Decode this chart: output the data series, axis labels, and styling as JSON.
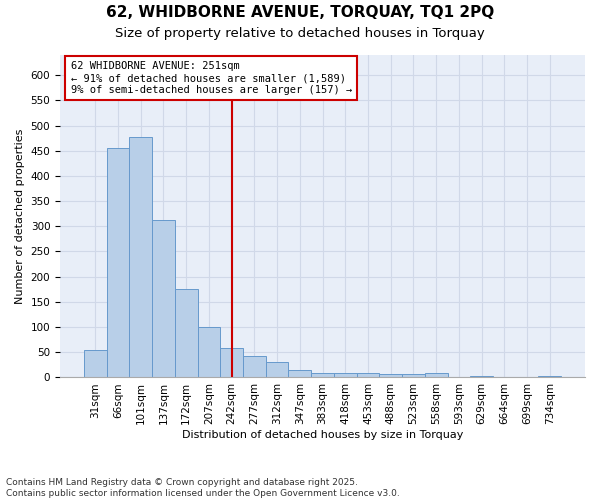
{
  "title": "62, WHIDBORNE AVENUE, TORQUAY, TQ1 2PQ",
  "subtitle": "Size of property relative to detached houses in Torquay",
  "xlabel": "Distribution of detached houses by size in Torquay",
  "ylabel": "Number of detached properties",
  "footer_line1": "Contains HM Land Registry data © Crown copyright and database right 2025.",
  "footer_line2": "Contains public sector information licensed under the Open Government Licence v3.0.",
  "annotation_title": "62 WHIDBORNE AVENUE: 251sqm",
  "annotation_line1": "← 91% of detached houses are smaller (1,589)",
  "annotation_line2": "9% of semi-detached houses are larger (157) →",
  "property_size": 251,
  "bar_color": "#b8cfe8",
  "bar_edge_color": "#6699cc",
  "vline_color": "#cc0000",
  "annotation_box_color": "#cc0000",
  "grid_color": "#d0d8e8",
  "bg_color": "#e8eef8",
  "categories": [
    "31sqm",
    "66sqm",
    "101sqm",
    "137sqm",
    "172sqm",
    "207sqm",
    "242sqm",
    "277sqm",
    "312sqm",
    "347sqm",
    "383sqm",
    "418sqm",
    "453sqm",
    "488sqm",
    "523sqm",
    "558sqm",
    "593sqm",
    "629sqm",
    "664sqm",
    "699sqm",
    "734sqm"
  ],
  "values": [
    55,
    456,
    478,
    312,
    175,
    100,
    58,
    42,
    30,
    15,
    8,
    8,
    8,
    6,
    6,
    8,
    0,
    3,
    0,
    0,
    3
  ],
  "ylim": [
    0,
    640
  ],
  "yticks": [
    0,
    50,
    100,
    150,
    200,
    250,
    300,
    350,
    400,
    450,
    500,
    550,
    600
  ],
  "vline_x_index": 6,
  "title_fontsize": 11,
  "subtitle_fontsize": 9.5,
  "axis_label_fontsize": 8,
  "tick_fontsize": 7.5,
  "annotation_fontsize": 7.5,
  "footer_fontsize": 6.5
}
